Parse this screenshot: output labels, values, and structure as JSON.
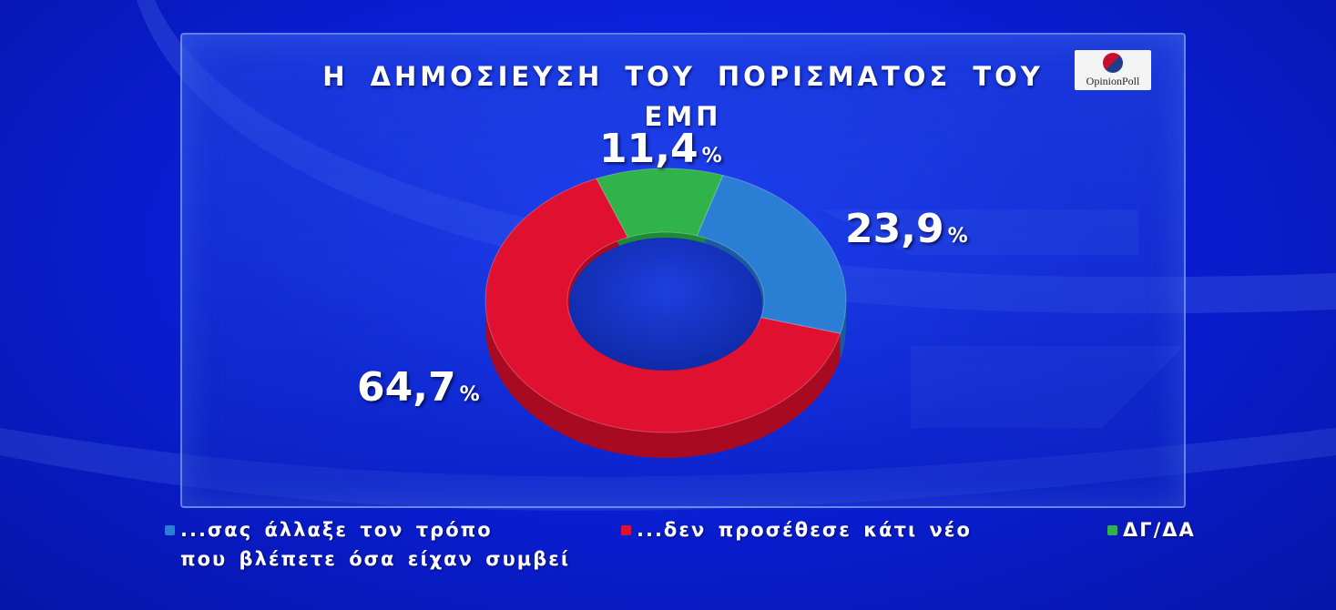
{
  "title": "Η ΔΗΜΟΣΙΕΥΣΗ ΤΟΥ ΠΟΡΙΣΜΑΤΟΣ ΤΟΥ ΕΜΠ",
  "logo": {
    "text": "OpinionPoll"
  },
  "labels": {
    "blue": "23,9",
    "red": "64,7",
    "green": "11,4",
    "percent_sign": "%"
  },
  "legend": {
    "blue_line1": "...σας άλλαξε τον τρόπο",
    "blue_line2": "που βλέπετε όσα είχαν συμβεί",
    "red": "...δεν προσέθεσε κάτι νέο",
    "green": "ΔΓ/ΔΑ"
  },
  "colors": {
    "blue": "#2a7fd4",
    "red": "#e01030",
    "green": "#2fb34a"
  },
  "chart_data": {
    "type": "pie",
    "title": "Η ΔΗΜΟΣΙΕΥΣΗ ΤΟΥ ΠΟΡΙΣΜΑΤΟΣ ΤΟΥ ΕΜΠ",
    "categories": [
      "...σας άλλαξε τον τρόπο που βλέπετε όσα είχαν συμβεί",
      "...δεν προσέθεσε κάτι νέο",
      "ΔΓ/ΔΑ"
    ],
    "values": [
      23.9,
      64.7,
      11.4
    ],
    "legend_position": "bottom"
  }
}
